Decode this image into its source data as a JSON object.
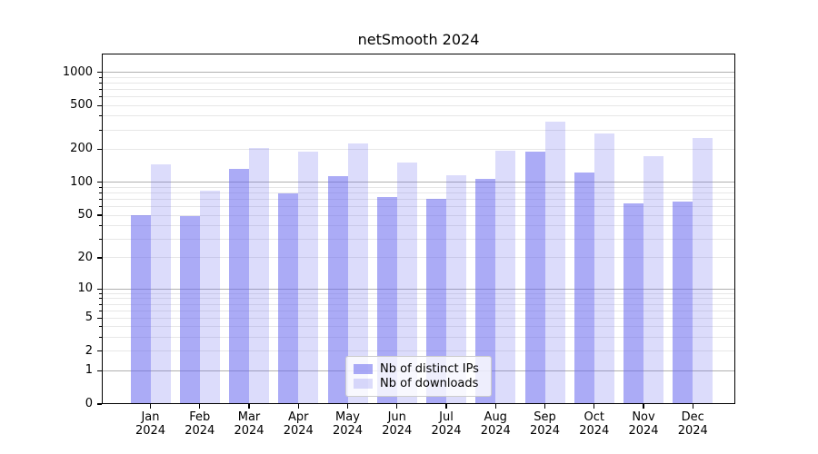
{
  "title": "netSmooth 2024",
  "chart_data": {
    "type": "bar",
    "title": "netSmooth 2024",
    "categories": [
      "Jan",
      "Feb",
      "Mar",
      "Apr",
      "May",
      "Jun",
      "Jul",
      "Aug",
      "Sep",
      "Oct",
      "Nov",
      "Dec"
    ],
    "category_year": "2024",
    "series": [
      {
        "name": "Nb of distinct IPs",
        "color": "#6666ee",
        "alpha": 0.55,
        "values": [
          50,
          49,
          133,
          80,
          115,
          73,
          71,
          107,
          192,
          124,
          64,
          67
        ]
      },
      {
        "name": "Nb of downloads",
        "color": "#6666ee",
        "alpha": 0.23,
        "values": [
          146,
          84,
          204,
          192,
          228,
          152,
          116,
          194,
          355,
          281,
          172,
          255
        ]
      }
    ],
    "yscale": "log1p",
    "ylim": [
      0,
      1475
    ],
    "yticks": [
      0,
      1,
      2,
      5,
      10,
      20,
      50,
      100,
      200,
      500,
      1000
    ],
    "major_grid_values": [
      1,
      10,
      100,
      1000
    ],
    "grid": "both",
    "legend_position": "lower center",
    "colors": {
      "bars_on_white_dark": "#ababf6",
      "bars_on_white_light": "#dcddfb",
      "major_grid": "#b0b0b0",
      "minor_grid": "#e7e7e7",
      "axis": "#000000",
      "legend_border": "#cccccc"
    }
  }
}
